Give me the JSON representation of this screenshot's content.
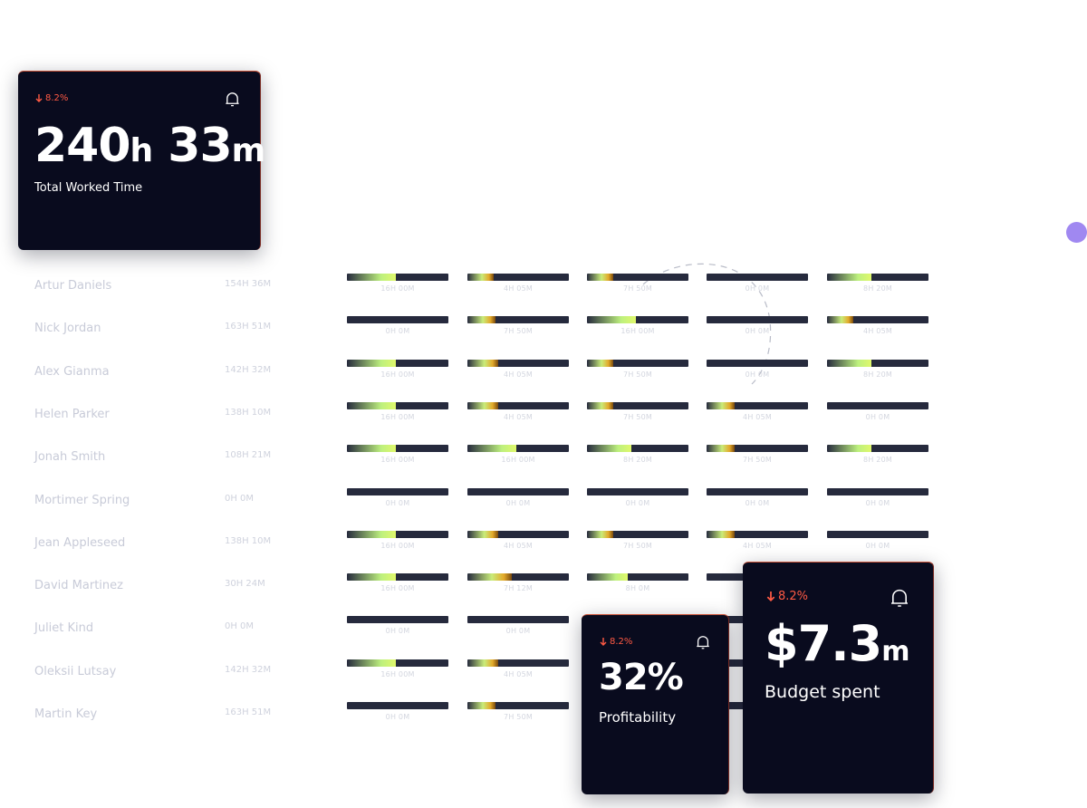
{
  "cards": {
    "worked": {
      "trend": "8.2%",
      "value": "240",
      "unit1": "h",
      "value2": "33",
      "unit2": "m",
      "label": "Total Worked Time"
    },
    "profitability": {
      "trend": "8.2%",
      "value": "32%",
      "label": "Profitability"
    },
    "budget": {
      "trend": "8.2%",
      "value": "$7.3",
      "unit": "m",
      "label": "Budget spent"
    }
  },
  "accent": "#a088f1",
  "employees": [
    {
      "name": "Artur Daniels",
      "total": "154H 36M",
      "cells": [
        [
          "16H 00M",
          "green",
          0.48
        ],
        [
          "4H 05M",
          "amber",
          0.26
        ],
        [
          "7H 50M",
          "amber",
          0.26
        ],
        [
          "0H 0M",
          "none",
          0
        ],
        [
          "8H 20M",
          "green",
          0.44
        ]
      ]
    },
    {
      "name": "Nick Jordan",
      "total": "163H 51M",
      "cells": [
        [
          "0H 0M",
          "none",
          0
        ],
        [
          "7H 50M",
          "amber",
          0.28
        ],
        [
          "16H 00M",
          "green",
          0.48
        ],
        [
          "0H 0M",
          "none",
          0
        ],
        [
          "4H 05M",
          "amber",
          0.26
        ]
      ]
    },
    {
      "name": "Alex Gianma",
      "total": "142H 32M",
      "cells": [
        [
          "16H 00M",
          "green",
          0.48
        ],
        [
          "4H 05M",
          "amber",
          0.3
        ],
        [
          "7H 50M",
          "amber",
          0.26
        ],
        [
          "0H 0M",
          "none",
          0
        ],
        [
          "8H 20M",
          "green",
          0.44
        ]
      ]
    },
    {
      "name": "Helen Parker",
      "total": "138H 10M",
      "cells": [
        [
          "16H 00M",
          "green",
          0.48
        ],
        [
          "4H 05M",
          "amber",
          0.3
        ],
        [
          "7H 50M",
          "amber",
          0.26
        ],
        [
          "4H 05M",
          "amber",
          0.28
        ],
        [
          "0H 0M",
          "none",
          0
        ]
      ]
    },
    {
      "name": "Jonah Smith",
      "total": "108H 21M",
      "cells": [
        [
          "16H 00M",
          "green",
          0.48
        ],
        [
          "16H 00M",
          "green",
          0.48
        ],
        [
          "8H 20M",
          "green",
          0.44
        ],
        [
          "7H 50M",
          "amber",
          0.28
        ],
        [
          "8H 20M",
          "green",
          0.44
        ]
      ]
    },
    {
      "name": "Mortimer Spring",
      "total": "0H 0M",
      "cells": [
        [
          "0H 0M",
          "none",
          0
        ],
        [
          "0H 0M",
          "none",
          0
        ],
        [
          "0H 0M",
          "none",
          0
        ],
        [
          "0H 0M",
          "none",
          0
        ],
        [
          "0H 0M",
          "none",
          0
        ]
      ]
    },
    {
      "name": "Jean Appleseed",
      "total": "138H 10M",
      "cells": [
        [
          "16H 00M",
          "green",
          0.48
        ],
        [
          "4H 05M",
          "amber",
          0.3
        ],
        [
          "7H 50M",
          "amber",
          0.26
        ],
        [
          "4H 05M",
          "amber",
          0.28
        ],
        [
          "0H 0M",
          "none",
          0
        ]
      ]
    },
    {
      "name": "David Martinez",
      "total": "30H 24M",
      "cells": [
        [
          "16H 00M",
          "green",
          0.48
        ],
        [
          "7H 12M",
          "amber",
          0.44
        ],
        [
          "8H 0M",
          "green",
          0.4
        ],
        [
          "",
          "none",
          0
        ],
        [
          "",
          "none",
          0
        ]
      ]
    },
    {
      "name": "Juliet Kind",
      "total": "0H 0M",
      "cells": [
        [
          "0H 0M",
          "none",
          0
        ],
        [
          "0H 0M",
          "none",
          0
        ],
        [
          "",
          "none",
          0
        ],
        [
          "",
          "none",
          0
        ],
        [
          "",
          "none",
          0
        ]
      ]
    },
    {
      "name": "Oleksii Lutsay",
      "total": "142H 32M",
      "cells": [
        [
          "16H 00M",
          "green",
          0.48
        ],
        [
          "4H 05M",
          "amber",
          0.3
        ],
        [
          "",
          "none",
          0
        ],
        [
          "",
          "none",
          0
        ],
        [
          "",
          "none",
          0
        ]
      ]
    },
    {
      "name": "Martin Key",
      "total": "163H 51M",
      "cells": [
        [
          "0H 0M",
          "none",
          0
        ],
        [
          "7H 50M",
          "amber",
          0.28
        ],
        [
          "",
          "none",
          0
        ],
        [
          "",
          "none",
          0
        ],
        [
          "",
          "none",
          0
        ]
      ]
    }
  ]
}
